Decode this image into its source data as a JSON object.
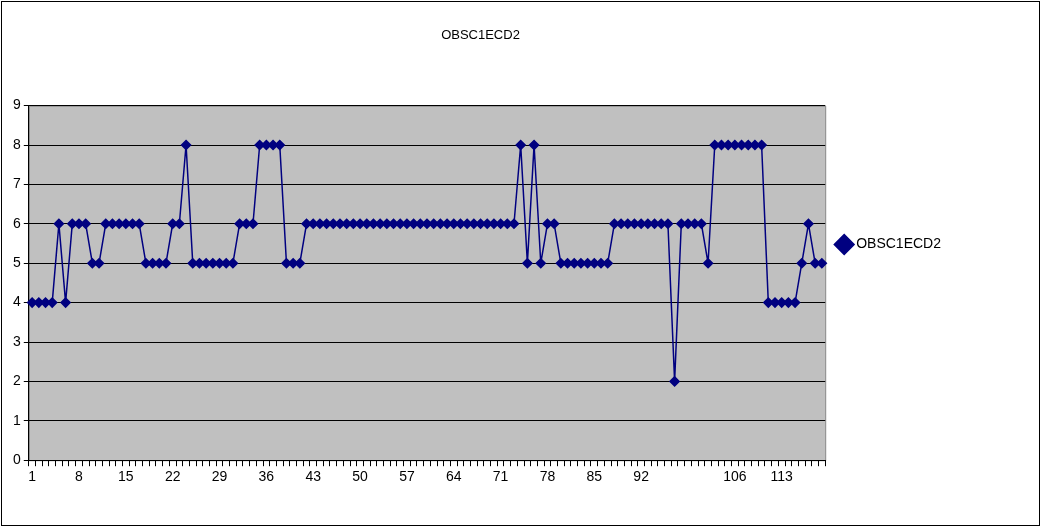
{
  "chart_data": {
    "type": "line",
    "title": "OBSC1ECD2",
    "categories": [
      "1",
      null,
      null,
      null,
      null,
      null,
      null,
      "8",
      null,
      null,
      null,
      null,
      null,
      null,
      "15",
      null,
      null,
      null,
      null,
      null,
      null,
      "22",
      null,
      null,
      null,
      null,
      null,
      null,
      "29",
      null,
      null,
      null,
      null,
      null,
      null,
      "36",
      null,
      null,
      null,
      null,
      null,
      null,
      "43",
      null,
      null,
      null,
      null,
      null,
      null,
      "50",
      null,
      null,
      null,
      null,
      null,
      null,
      "57",
      null,
      null,
      null,
      null,
      null,
      null,
      "64",
      null,
      null,
      null,
      null,
      null,
      null,
      "71",
      null,
      null,
      null,
      null,
      null,
      null,
      "78",
      null,
      null,
      null,
      null,
      null,
      null,
      "85",
      null,
      null,
      null,
      null,
      null,
      null,
      "92",
      null,
      null,
      null,
      null,
      null,
      null,
      null,
      null,
      null,
      null,
      null,
      null,
      null,
      "106",
      null,
      null,
      null,
      null,
      null,
      null,
      "113",
      null,
      null,
      null,
      null,
      null,
      null
    ],
    "series": [
      {
        "name": "OBSC1ECD2",
        "color": "#000080",
        "values": [
          4,
          4,
          4,
          4,
          6,
          4,
          6,
          6,
          6,
          5,
          5,
          6,
          6,
          6,
          6,
          6,
          6,
          5,
          5,
          5,
          5,
          6,
          6,
          8,
          5,
          5,
          5,
          5,
          5,
          5,
          5,
          6,
          6,
          6,
          8,
          8,
          8,
          8,
          5,
          5,
          5,
          6,
          6,
          6,
          6,
          6,
          6,
          6,
          6,
          6,
          6,
          6,
          6,
          6,
          6,
          6,
          6,
          6,
          6,
          6,
          6,
          6,
          6,
          6,
          6,
          6,
          6,
          6,
          6,
          6,
          6,
          6,
          6,
          8,
          5,
          8,
          5,
          6,
          6,
          5,
          5,
          5,
          5,
          5,
          5,
          5,
          5,
          6,
          6,
          6,
          6,
          6,
          6,
          6,
          6,
          6,
          2,
          6,
          6,
          6,
          6,
          5,
          8,
          8,
          8,
          8,
          8,
          8,
          8,
          8,
          4,
          4,
          4,
          4,
          4,
          5,
          6,
          5,
          5
        ]
      }
    ],
    "ylim": [
      0,
      9
    ],
    "yticks": [
      0,
      1,
      2,
      3,
      4,
      5,
      6,
      7,
      8,
      9
    ],
    "grid": "y",
    "legend": "right",
    "marker": "diamond",
    "line_style": "solid"
  }
}
